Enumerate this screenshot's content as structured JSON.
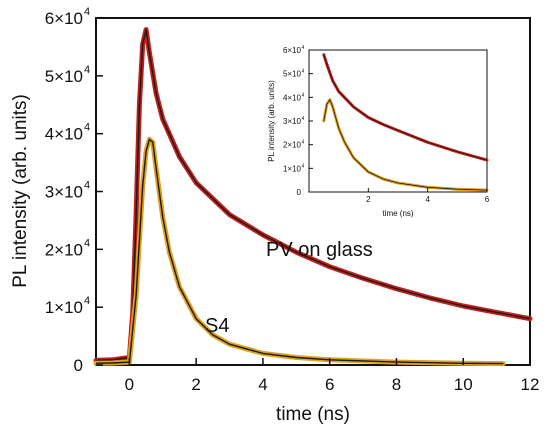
{
  "chart_data": [
    {
      "type": "line",
      "title": "",
      "xlabel": "time (ns)",
      "ylabel": "PL intensity (arb. units)",
      "xlim": [
        -1,
        12
      ],
      "ylim": [
        0,
        60000
      ],
      "x_ticks": [
        0,
        2,
        4,
        6,
        8,
        10,
        12
      ],
      "y_ticks": [
        {
          "value": 0,
          "label": "0"
        },
        {
          "value": 10000,
          "label": "1×10"
        },
        {
          "value": 20000,
          "label": "2×10"
        },
        {
          "value": 30000,
          "label": "3×10"
        },
        {
          "value": 40000,
          "label": "4×10"
        },
        {
          "value": 50000,
          "label": "5×10"
        },
        {
          "value": 60000,
          "label": "6×10"
        }
      ],
      "y_tick_exponent": "4",
      "annotations": [
        "PV on glass",
        "S4"
      ],
      "grid": false,
      "series": [
        {
          "name": "PV on glass",
          "color": "#c0201a",
          "fit_color": "#1a1a1a",
          "x": [
            -1,
            -0.5,
            0,
            0.1,
            0.2,
            0.3,
            0.4,
            0.5,
            0.6,
            0.8,
            1,
            1.5,
            2,
            3,
            4,
            5,
            6,
            7,
            8,
            9,
            10,
            11,
            12
          ],
          "y": [
            800,
            900,
            1300,
            9000,
            26000,
            45000,
            55500,
            58000,
            54000,
            47000,
            42500,
            36000,
            31500,
            26000,
            22500,
            19500,
            17000,
            15000,
            13200,
            11600,
            10200,
            9100,
            8000
          ]
        },
        {
          "name": "S4",
          "color": "#e0a020",
          "fit_color": "#1a1a1a",
          "x": [
            -1,
            -0.5,
            0,
            0.2,
            0.4,
            0.5,
            0.6,
            0.7,
            0.8,
            1,
            1.2,
            1.5,
            2,
            2.5,
            3,
            4,
            5,
            6,
            8,
            10,
            11.2
          ],
          "y": [
            300,
            350,
            500,
            12000,
            31000,
            37000,
            39000,
            38500,
            34000,
            25500,
            19500,
            13500,
            8000,
            5200,
            3600,
            2000,
            1300,
            900,
            500,
            300,
            250
          ]
        }
      ]
    },
    {
      "type": "line",
      "title": "",
      "xlabel": "time (ns)",
      "ylabel": "PL intensity (arb. units)",
      "xlim": [
        0,
        6
      ],
      "ylim": [
        0,
        60000
      ],
      "x_ticks": [
        2,
        4,
        6
      ],
      "y_ticks": [
        {
          "value": 0,
          "label": "0"
        },
        {
          "value": 10000,
          "label": "1×10"
        },
        {
          "value": 20000,
          "label": "2×10"
        },
        {
          "value": 30000,
          "label": "3×10"
        },
        {
          "value": 40000,
          "label": "4×10"
        },
        {
          "value": 50000,
          "label": "5×10"
        },
        {
          "value": 60000,
          "label": "6×10"
        }
      ],
      "y_tick_exponent": "4",
      "grid": false,
      "series": [
        {
          "name": "PV on glass",
          "color": "#c0201a",
          "fit_color": "#1a1a1a",
          "x": [
            0.5,
            0.6,
            0.8,
            1,
            1.5,
            2,
            2.5,
            3,
            4,
            5,
            6
          ],
          "y": [
            58000,
            54000,
            47000,
            42500,
            36000,
            31500,
            28500,
            26000,
            21000,
            17000,
            13500
          ]
        },
        {
          "name": "S4",
          "color": "#e0a020",
          "fit_color": "#1a1a1a",
          "x": [
            0.5,
            0.6,
            0.7,
            0.8,
            1,
            1.2,
            1.5,
            2,
            2.5,
            3,
            4,
            5,
            6
          ],
          "y": [
            30000,
            37000,
            39000,
            36000,
            27000,
            21000,
            14500,
            8500,
            5500,
            3800,
            2000,
            1200,
            800
          ]
        }
      ]
    }
  ]
}
